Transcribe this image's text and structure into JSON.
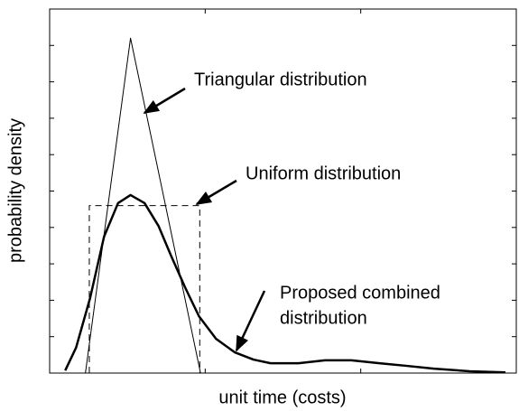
{
  "chart_data": {
    "type": "line",
    "x_label": "unit time (costs)",
    "y_label": "probability density",
    "xlim": [
      0,
      3
    ],
    "xticks": [
      0,
      1,
      2,
      3
    ],
    "ylim": [
      0,
      10
    ],
    "yticks": [
      0,
      1,
      2,
      3,
      4,
      5,
      6,
      7,
      8,
      9,
      10
    ],
    "series": [
      {
        "color": "#000000",
        "line_width": 1,
        "dashed": false,
        "x": [
          0.23,
          0.52,
          0.97
        ],
        "values": [
          0,
          9.2,
          0
        ]
      },
      {
        "color": "#000000",
        "line_width": 1,
        "dashed": true,
        "x": [
          0.255,
          0.255,
          0.965,
          0.965
        ],
        "values": [
          0,
          4.6,
          4.6,
          0
        ]
      },
      {
        "color": "#000000",
        "line_width": 2.5,
        "dashed": false,
        "x": [
          0.1,
          0.17,
          0.26,
          0.35,
          0.44,
          0.52,
          0.61,
          0.7,
          0.78,
          0.87,
          0.96,
          1.07,
          1.19,
          1.31,
          1.42,
          1.6,
          1.77,
          1.94,
          2.12,
          2.29,
          2.47,
          2.7,
          2.93
        ],
        "values": [
          0.07,
          0.7,
          2.06,
          3.75,
          4.67,
          4.89,
          4.67,
          4.04,
          3.23,
          2.36,
          1.56,
          0.94,
          0.57,
          0.37,
          0.27,
          0.27,
          0.35,
          0.35,
          0.27,
          0.2,
          0.12,
          0.05,
          0.02
        ]
      }
    ],
    "annotations": [
      {
        "lines": [
          "Triangular distribution"
        ]
      },
      {
        "lines": [
          "Uniform distribution"
        ]
      },
      {
        "lines": [
          "Proposed combined",
          "distribution"
        ]
      }
    ]
  }
}
